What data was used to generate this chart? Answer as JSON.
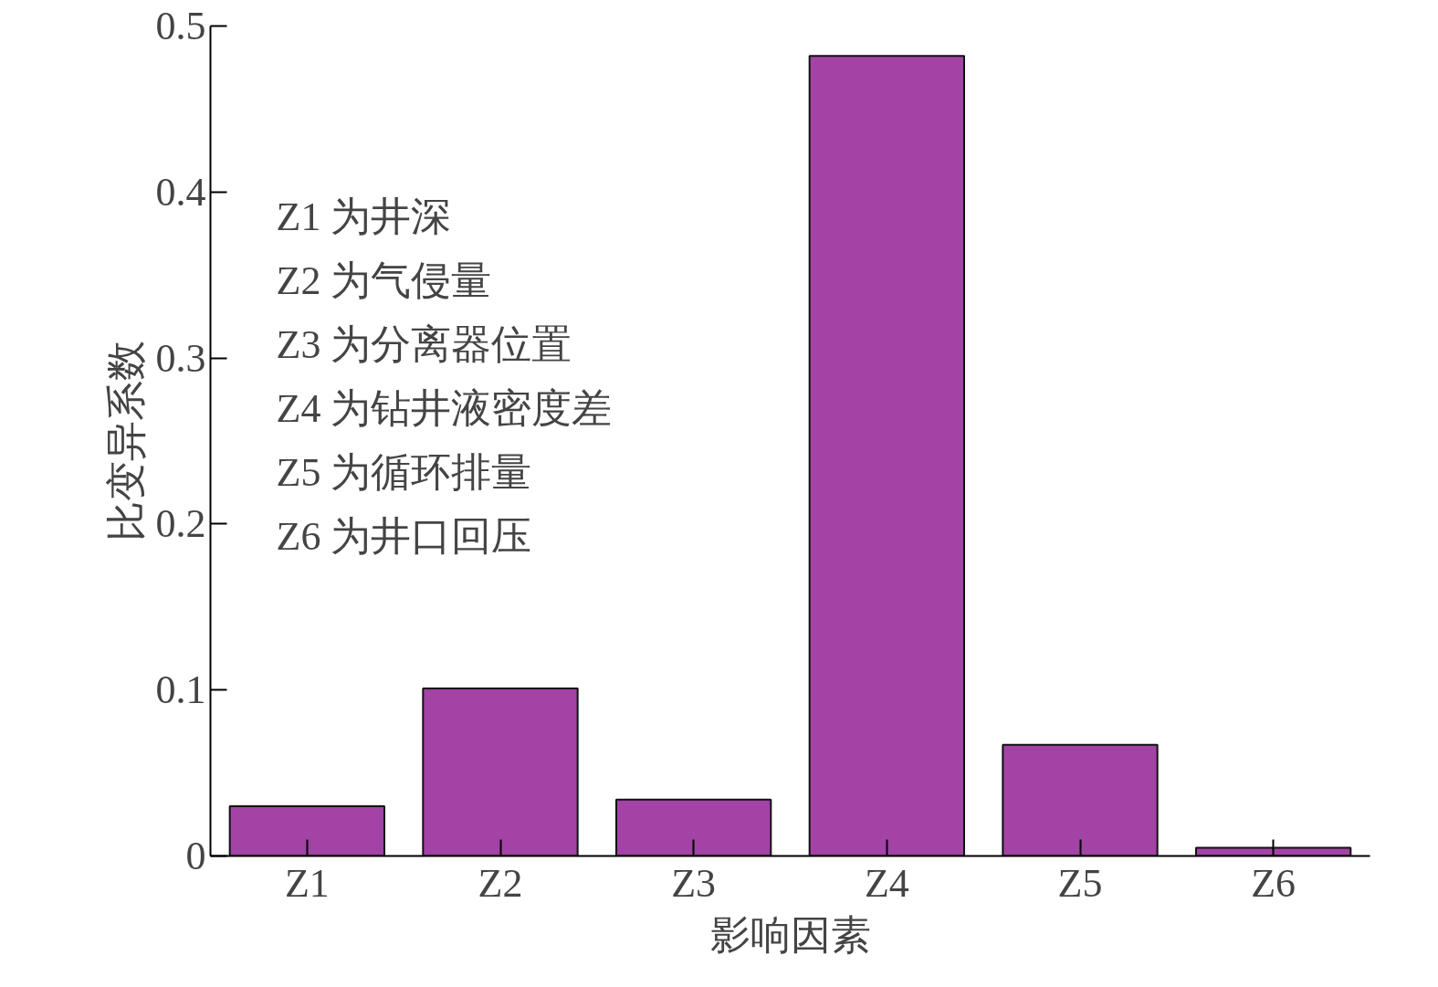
{
  "chart_data": {
    "type": "bar",
    "xlabel": "影响因素",
    "ylabel": "比变异系数",
    "categories": [
      "Z1",
      "Z2",
      "Z3",
      "Z4",
      "Z5",
      "Z6"
    ],
    "values": [
      0.03,
      0.101,
      0.034,
      0.482,
      0.067,
      0.005
    ],
    "color": "#a243a5",
    "ylim": [
      0,
      0.5
    ],
    "yticks": [
      0,
      0.1,
      0.2,
      0.3,
      0.4,
      0.5
    ],
    "grid": false,
    "annotations": [
      "Z1 为井深",
      "Z2 为气侵量",
      "Z3 为分离器位置",
      "Z4 为钻井液密度差",
      "Z5 为循环排量",
      "Z6 为井口回压"
    ]
  }
}
